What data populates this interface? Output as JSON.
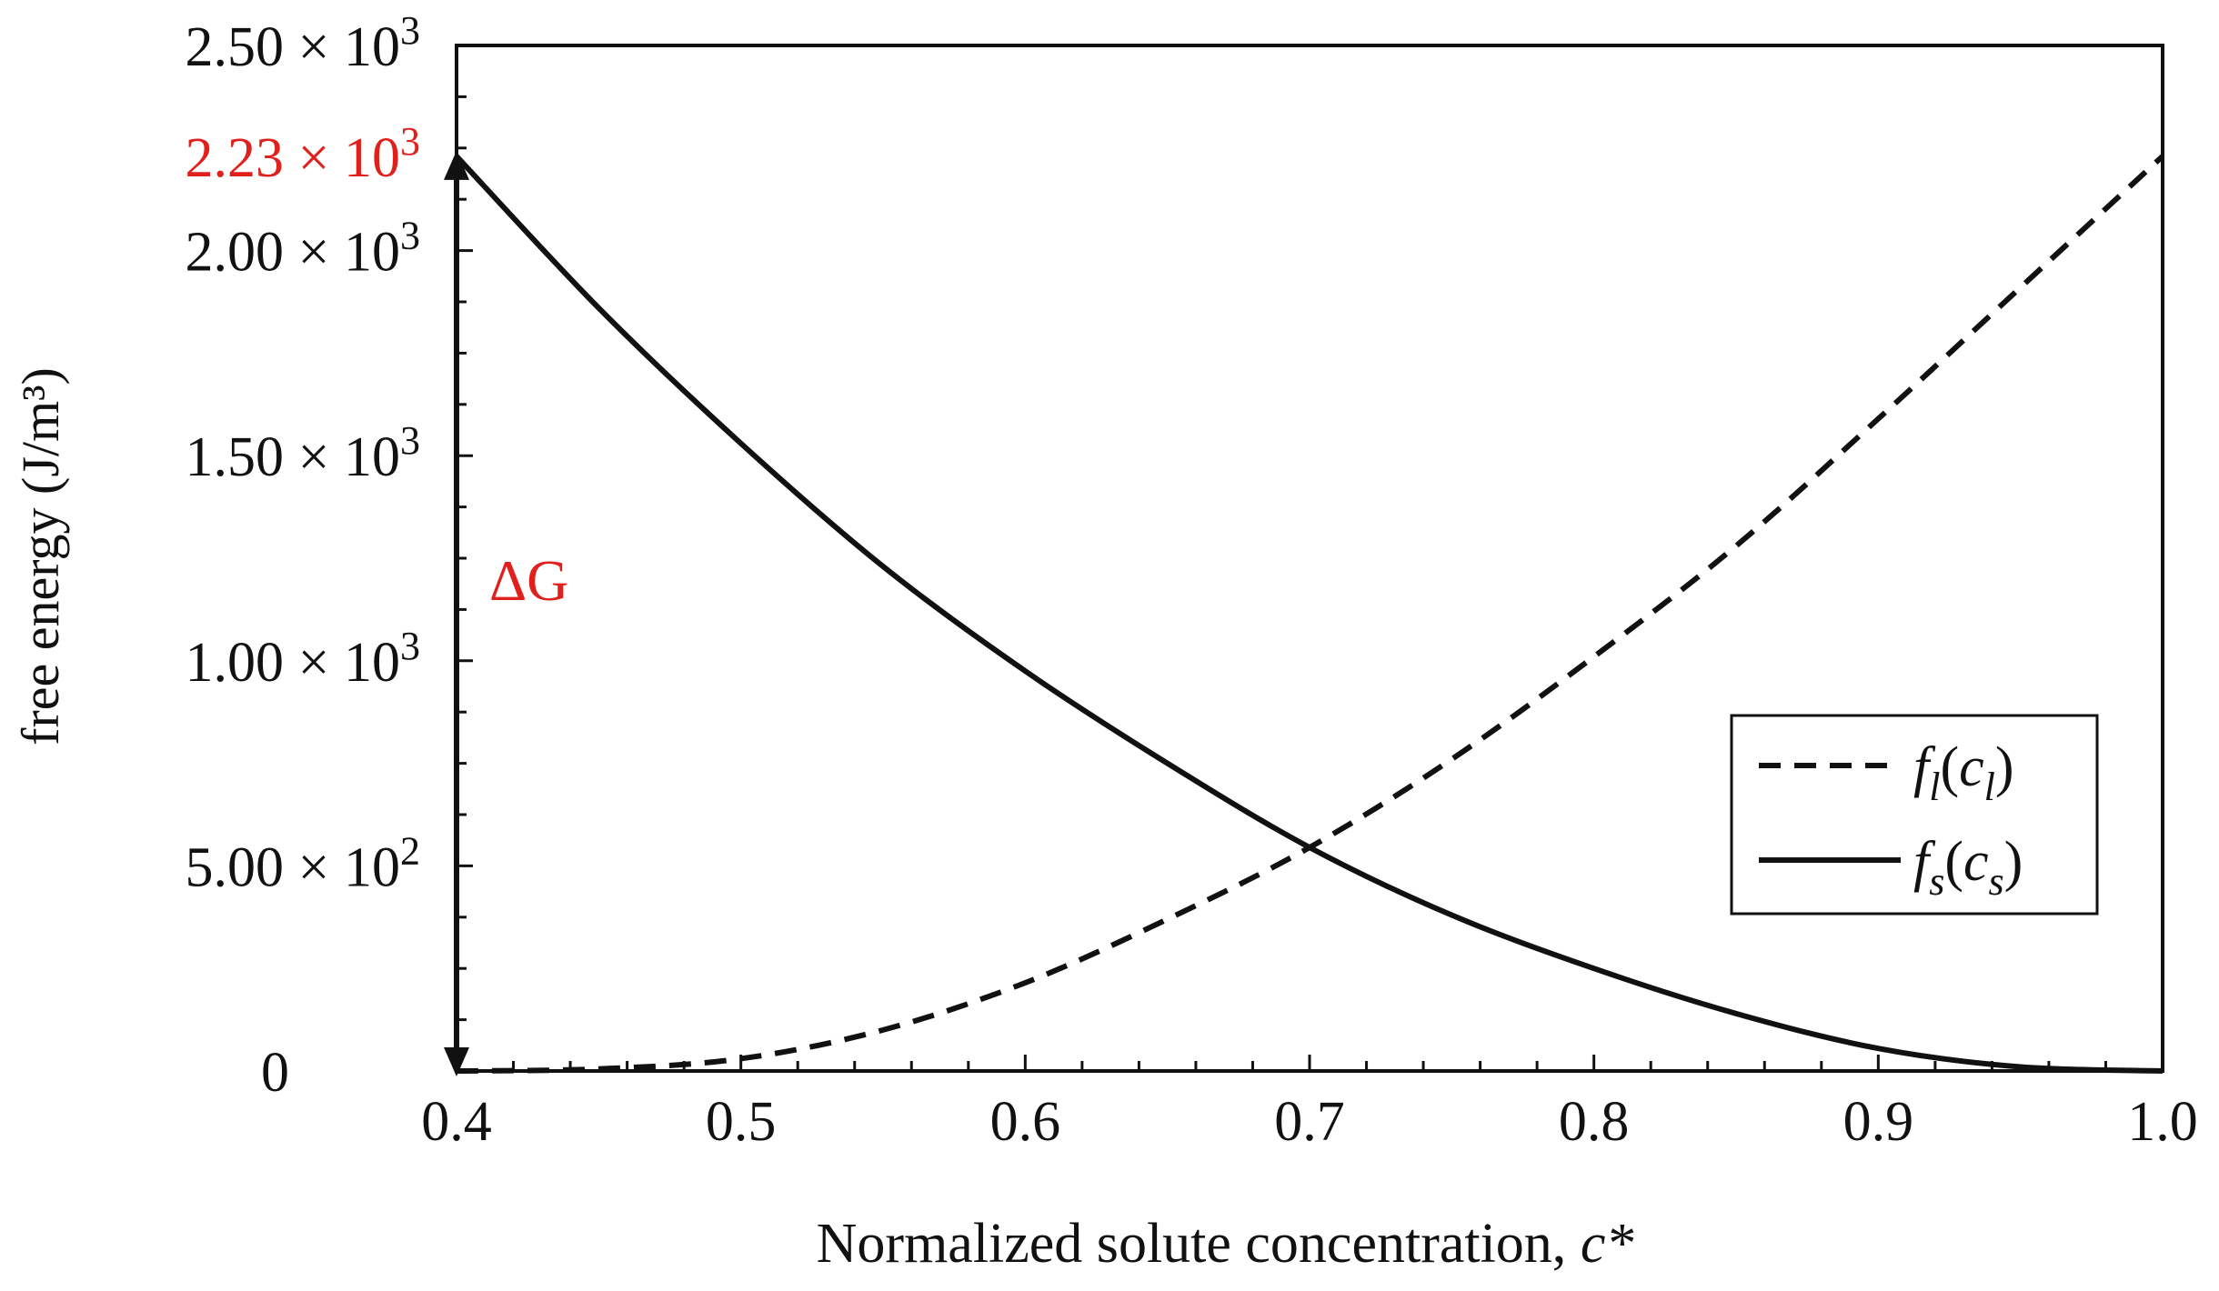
{
  "chart_data": {
    "type": "line",
    "title": "",
    "xlabel": "Normalized solute concentration, ",
    "xlabel_var": "c*",
    "ylabel": "free energy (J/m³)",
    "xlim": [
      0.4,
      1.0
    ],
    "ylim": [
      0,
      2500
    ],
    "x_ticks": [
      0.4,
      0.5,
      0.6,
      0.7,
      0.8,
      0.9,
      1.0
    ],
    "x_tick_labels": [
      "0.4",
      "0.5",
      "0.6",
      "0.7",
      "0.8",
      "0.9",
      "1.0"
    ],
    "y_ticks": [
      {
        "value": 0,
        "mant": "0",
        "exp": ""
      },
      {
        "value": 500,
        "mant": "5.00 × 10",
        "exp": "2"
      },
      {
        "value": 1000,
        "mant": "1.00 × 10",
        "exp": "3"
      },
      {
        "value": 1500,
        "mant": "1.50 × 10",
        "exp": "3"
      },
      {
        "value": 2000,
        "mant": "2.00 × 10",
        "exp": "3"
      },
      {
        "value": 2500,
        "mant": "2.50 × 10",
        "exp": "3"
      }
    ],
    "highlight_tick": {
      "value": 2230,
      "mant": "2.23 × 10",
      "exp": "3",
      "color": "#e0201c"
    },
    "annotation": {
      "text": "ΔG",
      "color": "#e0201c",
      "from_value": 2230,
      "to_value": 0,
      "at_x": 0.4
    },
    "x": [
      0.4,
      0.45,
      0.5,
      0.55,
      0.6,
      0.65,
      0.7,
      0.75,
      0.8,
      0.85,
      0.9,
      0.95,
      1.0
    ],
    "series": [
      {
        "name": "f_l(c_l)",
        "legend_main": "f",
        "legend_sub": "l",
        "legend_arg": "c",
        "legend_arg_sub": "l",
        "style": "dashed",
        "values": [
          0,
          5,
          30,
          100,
          215,
          370,
          545,
          760,
          1010,
          1280,
          1590,
          1910,
          2230
        ]
      },
      {
        "name": "f_s(c_s)",
        "legend_main": "f",
        "legend_sub": "s",
        "legend_arg": "c",
        "legend_arg_sub": "s",
        "style": "solid",
        "values": [
          2230,
          1860,
          1530,
          1230,
          975,
          750,
          545,
          380,
          250,
          140,
          55,
          10,
          0
        ]
      }
    ],
    "legend_position": "right-middle",
    "grid": false
  }
}
